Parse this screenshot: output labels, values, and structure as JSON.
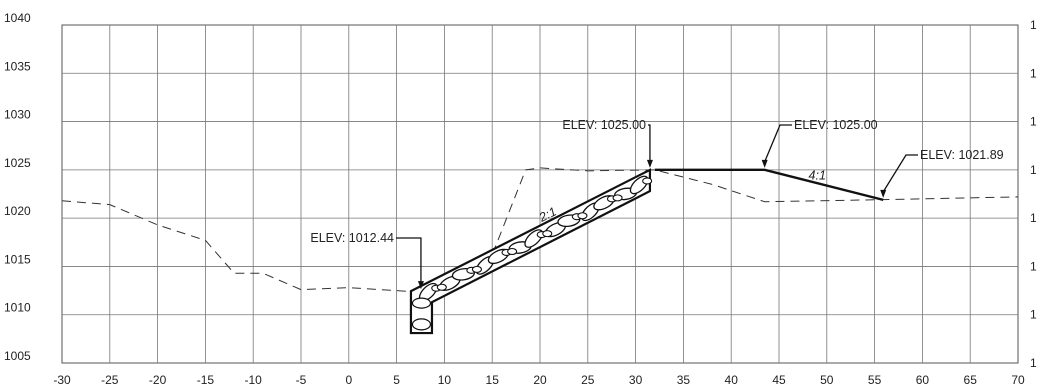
{
  "x_axis": {
    "ticks": [
      "-30",
      "-25",
      "-20",
      "-15",
      "-10",
      "-5",
      "0",
      "5",
      "10",
      "15",
      "20",
      "25",
      "30",
      "35",
      "40",
      "45",
      "50",
      "55",
      "60",
      "65",
      "70"
    ],
    "min": -30,
    "max": 70
  },
  "y_axis": {
    "ticks": [
      "1040",
      "1035",
      "1030",
      "1025",
      "1020",
      "1015",
      "1010",
      "1005"
    ],
    "min": 1005,
    "max": 1040
  },
  "right_axis_labels": [
    "1",
    "1",
    "1",
    "1",
    "1",
    "1",
    "1",
    "1"
  ],
  "elevation_callouts": [
    {
      "label": "ELEV: 1012.44",
      "x": 6.5,
      "y": 1012.44
    },
    {
      "label": "ELEV: 1025.00",
      "x": 31.5,
      "y": 1025.0
    },
    {
      "label": "ELEV: 1025.00",
      "x": 43.5,
      "y": 1025.0
    },
    {
      "label": "ELEV: 1021.89",
      "x": 55.9,
      "y": 1021.89
    }
  ],
  "slope_labels": [
    {
      "text": "2:1",
      "x": 21.0,
      "y": 1020.0
    },
    {
      "text": "4:1",
      "x": 49.0,
      "y": 1024.0
    }
  ],
  "existing_ground": [
    [
      -30,
      1021.8
    ],
    [
      -25,
      1021.4
    ],
    [
      -20,
      1019.3
    ],
    [
      -15,
      1017.7
    ],
    [
      -12,
      1014.3
    ],
    [
      -9,
      1014.3
    ],
    [
      -5,
      1012.6
    ],
    [
      0,
      1012.8
    ],
    [
      6.5,
      1012.4
    ],
    [
      12,
      1014.2
    ],
    [
      15,
      1016.2
    ],
    [
      18.5,
      1025.0
    ],
    [
      20,
      1025.2
    ],
    [
      25,
      1024.9
    ],
    [
      32,
      1025.0
    ],
    [
      38,
      1023.5
    ],
    [
      43.5,
      1021.7
    ],
    [
      55,
      1021.9
    ],
    [
      70,
      1022.2
    ]
  ],
  "proposed_grade": [
    [
      32,
      1025.0
    ],
    [
      43.5,
      1025.0
    ],
    [
      55.9,
      1021.89
    ]
  ],
  "riprap": {
    "bottom_left": [
      6.5,
      1012.44
    ],
    "top_left": [
      31.5,
      1025.0
    ],
    "top_right": [
      31.5,
      1022.8
    ],
    "bottom_right": [
      8.7,
      1011.3
    ],
    "toe_bottom": [
      6.5,
      1008.1
    ]
  }
}
